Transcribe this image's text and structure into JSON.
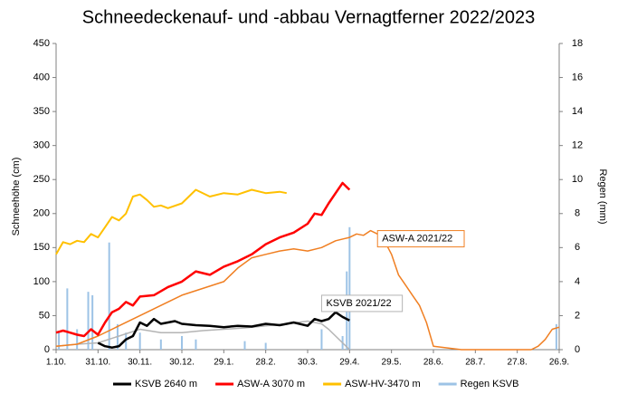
{
  "chart_data": {
    "type": "line",
    "title": "Schneedeckenauf- und -abbau Vernagtferner 2022/2023",
    "y_label": "Schneehöhe (cm)",
    "y2_label": "Regen (mm)",
    "xlim": [
      0,
      360
    ],
    "xticks": [
      {
        "value": 0,
        "label": "1.10."
      },
      {
        "value": 30,
        "label": "31.10."
      },
      {
        "value": 60,
        "label": "30.11."
      },
      {
        "value": 90,
        "label": "30.12."
      },
      {
        "value": 120,
        "label": "29.1."
      },
      {
        "value": 150,
        "label": "28.2."
      },
      {
        "value": 180,
        "label": "30.3."
      },
      {
        "value": 210,
        "label": "29.4."
      },
      {
        "value": 240,
        "label": "29.5."
      },
      {
        "value": 270,
        "label": "28.6."
      },
      {
        "value": 300,
        "label": "28.7."
      },
      {
        "value": 330,
        "label": "27.8."
      },
      {
        "value": 360,
        "label": "26.9."
      }
    ],
    "ylim": [
      0,
      450
    ],
    "yticks": [
      0,
      50,
      100,
      150,
      200,
      250,
      300,
      350,
      400,
      450
    ],
    "y2lim": [
      0,
      18
    ],
    "y2ticks": [
      0,
      2,
      4,
      6,
      8,
      10,
      12,
      14,
      16,
      18
    ],
    "grid": false,
    "legend": "bottom",
    "series": [
      {
        "name": "Regen KSVB",
        "color": "#9dc3e6",
        "axis": "y2",
        "kind": "bar",
        "in_legend": true,
        "x": [
          2,
          8,
          15,
          23,
          26,
          38,
          44,
          50,
          60,
          75,
          90,
          100,
          135,
          150,
          190,
          205,
          208,
          210,
          358
        ],
        "values": [
          1.0,
          3.6,
          1.2,
          3.4,
          3.2,
          6.3,
          1.5,
          1.0,
          1.0,
          0.6,
          0.8,
          0.6,
          0.5,
          0.4,
          1.2,
          0.8,
          4.6,
          7.2,
          1.5
        ]
      },
      {
        "name": "KSVB 2021/22",
        "color": "#b4b4b4",
        "in_legend": false,
        "width": 1.5,
        "x": [
          0,
          15,
          30,
          45,
          60,
          75,
          90,
          105,
          120,
          135,
          150,
          165,
          180,
          190,
          195,
          200,
          205,
          210
        ],
        "values": [
          5,
          8,
          10,
          20,
          30,
          25,
          25,
          28,
          30,
          32,
          35,
          38,
          42,
          38,
          30,
          20,
          10,
          0
        ]
      },
      {
        "name": "ASW-A 2021/22",
        "color": "#f07f22",
        "in_legend": false,
        "width": 1.5,
        "x": [
          0,
          15,
          30,
          45,
          60,
          75,
          90,
          105,
          120,
          130,
          140,
          150,
          160,
          170,
          180,
          190,
          200,
          210,
          215,
          220,
          225,
          230,
          235,
          240,
          245,
          250,
          255,
          260,
          265,
          270,
          290,
          310,
          330,
          340,
          345,
          350,
          355,
          360
        ],
        "values": [
          5,
          8,
          20,
          35,
          50,
          65,
          80,
          90,
          100,
          120,
          135,
          140,
          145,
          148,
          145,
          150,
          160,
          165,
          170,
          168,
          175,
          170,
          160,
          140,
          110,
          95,
          80,
          65,
          40,
          5,
          0,
          0,
          0,
          0,
          5,
          15,
          30,
          33
        ]
      },
      {
        "name": "KSVB 2640 m",
        "color": "#000000",
        "in_legend": true,
        "width": 2.5,
        "x": [
          30,
          35,
          40,
          45,
          50,
          55,
          60,
          65,
          70,
          75,
          80,
          85,
          90,
          100,
          110,
          120,
          130,
          140,
          150,
          160,
          170,
          180,
          185,
          190,
          195,
          200,
          205,
          210
        ],
        "values": [
          10,
          5,
          3,
          5,
          15,
          20,
          40,
          35,
          45,
          38,
          40,
          42,
          38,
          36,
          35,
          33,
          35,
          34,
          38,
          36,
          40,
          35,
          45,
          42,
          45,
          55,
          48,
          43
        ]
      },
      {
        "name": "ASW-A 3070 m",
        "color": "#ff0000",
        "in_legend": true,
        "width": 2.5,
        "x": [
          0,
          5,
          10,
          15,
          20,
          25,
          30,
          35,
          40,
          45,
          50,
          55,
          60,
          70,
          80,
          90,
          100,
          110,
          120,
          130,
          140,
          150,
          160,
          170,
          180,
          185,
          190,
          195,
          200,
          205,
          210
        ],
        "values": [
          25,
          28,
          25,
          22,
          20,
          30,
          22,
          40,
          55,
          60,
          70,
          65,
          78,
          80,
          92,
          100,
          115,
          110,
          122,
          130,
          140,
          155,
          165,
          172,
          185,
          200,
          198,
          215,
          230,
          245,
          235
        ]
      },
      {
        "name": "ASW-HV-3470 m",
        "color": "#ffc000",
        "in_legend": true,
        "width": 2,
        "x": [
          0,
          5,
          10,
          15,
          20,
          25,
          30,
          35,
          40,
          45,
          50,
          55,
          60,
          65,
          70,
          75,
          80,
          90,
          100,
          110,
          120,
          130,
          140,
          150,
          160,
          165
        ],
        "values": [
          140,
          158,
          155,
          160,
          158,
          170,
          165,
          180,
          195,
          190,
          200,
          225,
          228,
          220,
          210,
          212,
          208,
          215,
          235,
          225,
          230,
          228,
          235,
          230,
          232,
          230
        ]
      }
    ],
    "annotations": [
      {
        "text": "KSVB 2021/22",
        "x": 190,
        "y": 68,
        "border": "#b4b4b4"
      },
      {
        "text": "ASW-A 2021/22",
        "x": 230,
        "y": 163,
        "border": "#f07f22"
      }
    ]
  }
}
